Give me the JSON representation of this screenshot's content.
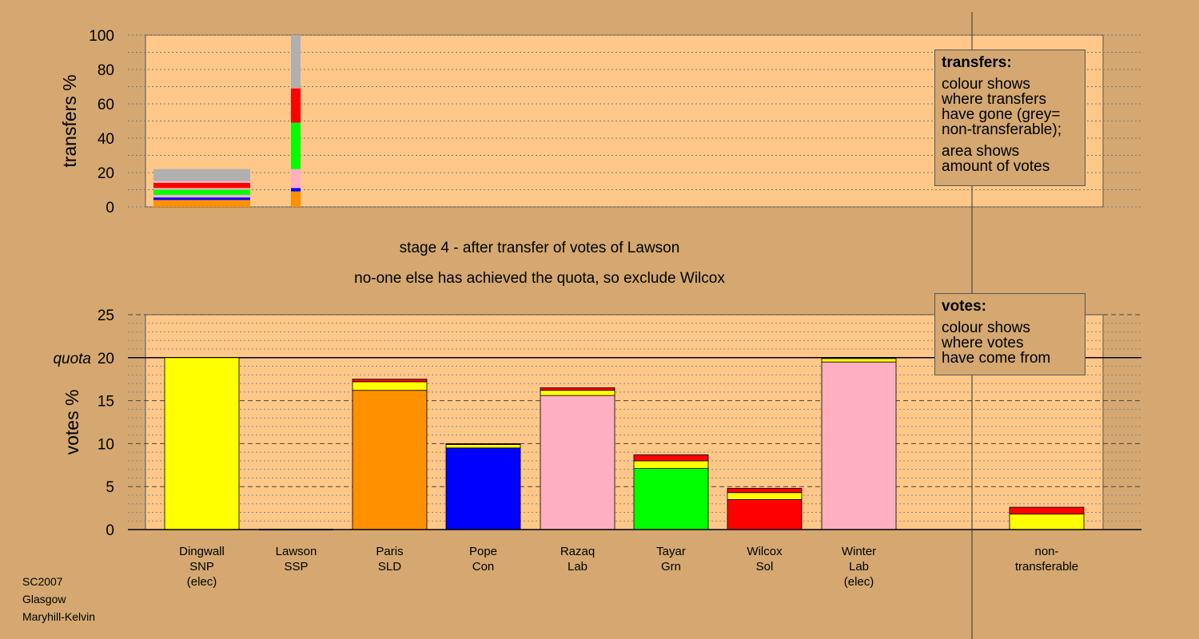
{
  "footer": [
    "SC2007",
    "Glasgow",
    "Maryhill-Kelvin"
  ],
  "stage": {
    "line1": "stage 4 - after transfer of votes of Lawson",
    "line2": "no-one else has achieved the quota, so exclude Wilcox"
  },
  "legend_transfers": {
    "title": "transfers:",
    "p1": "colour shows\nwhere transfers\nhave gone (grey=\nnon-transferable);",
    "p2": "area shows\namount of votes"
  },
  "legend_votes": {
    "title": "votes:",
    "p1": "colour shows\nwhere votes\nhave come from"
  },
  "colors": {
    "SNP": "#ffff00",
    "SSP": "#ff0000",
    "SLD": "#ff9000",
    "Con": "#0000ff",
    "Lab": "#ffb0c0",
    "Grn": "#00ff00",
    "Sol": "#ff0000",
    "nontransferable": "#b0b0b0",
    "plot_bg": "#ffc888"
  },
  "chart_data": [
    {
      "type": "bar",
      "stacked": true,
      "ylabel": "transfers %",
      "ylim": [
        0,
        100
      ],
      "yticks": [
        0,
        20,
        40,
        60,
        80,
        100
      ],
      "bars": [
        {
          "label": "Dingwall",
          "width_share": 0.05,
          "segments": [
            {
              "party": "SLD",
              "value": 4
            },
            {
              "party": "Con",
              "value": 1.5
            },
            {
              "party": "Lab",
              "value": 1.5
            },
            {
              "party": "Grn",
              "value": 3
            },
            {
              "party": "Lab",
              "value": 1
            },
            {
              "party": "SSP",
              "value": 3
            },
            {
              "party": "Lab",
              "value": 1
            },
            {
              "party": "nontransferable",
              "value": 7
            }
          ]
        },
        {
          "label": "Lawson",
          "width_share": 0.005,
          "segments": [
            {
              "party": "SLD",
              "value": 9
            },
            {
              "party": "Con",
              "value": 2
            },
            {
              "party": "Lab",
              "value": 11
            },
            {
              "party": "Grn",
              "value": 27
            },
            {
              "party": "SSP",
              "value": 20
            },
            {
              "party": "nontransferable",
              "value": 31
            }
          ]
        }
      ]
    },
    {
      "type": "bar",
      "stacked": true,
      "ylabel": "votes %",
      "ylim": [
        0,
        25
      ],
      "yticks": [
        0,
        5,
        10,
        15,
        20,
        25
      ],
      "quota": 20,
      "quota_label": "quota",
      "categories": [
        {
          "name": "Dingwall",
          "party": "SNP",
          "note": "(elec)"
        },
        {
          "name": "Lawson",
          "party": "SSP",
          "note": ""
        },
        {
          "name": "Paris",
          "party": "SLD",
          "note": ""
        },
        {
          "name": "Pope",
          "party": "Con",
          "note": ""
        },
        {
          "name": "Razaq",
          "party": "Lab",
          "note": ""
        },
        {
          "name": "Tayar",
          "party": "Grn",
          "note": ""
        },
        {
          "name": "Wilcox",
          "party": "Sol",
          "note": ""
        },
        {
          "name": "Winter",
          "party": "Lab",
          "note": "(elec)"
        },
        {
          "name": "",
          "party": "",
          "note": ""
        },
        {
          "name": "non-",
          "party": "transferable",
          "note": ""
        }
      ],
      "stacks": [
        [
          {
            "party": "SNP",
            "value": 20
          }
        ],
        [],
        [
          {
            "party": "SLD",
            "value": 16.2
          },
          {
            "party": "SNP",
            "value": 1
          },
          {
            "party": "SSP",
            "value": 0.3
          }
        ],
        [
          {
            "party": "Con",
            "value": 9.5
          },
          {
            "party": "SNP",
            "value": 0.4
          },
          {
            "party": "SSP",
            "value": 0.1
          }
        ],
        [
          {
            "party": "Lab",
            "value": 15.6
          },
          {
            "party": "SNP",
            "value": 0.6
          },
          {
            "party": "SSP",
            "value": 0.3
          }
        ],
        [
          {
            "party": "Grn",
            "value": 7.1
          },
          {
            "party": "SNP",
            "value": 0.9
          },
          {
            "party": "SSP",
            "value": 0.7
          }
        ],
        [
          {
            "party": "Sol",
            "value": 3.5
          },
          {
            "party": "SNP",
            "value": 0.8
          },
          {
            "party": "SSP",
            "value": 0.5
          }
        ],
        [
          {
            "party": "Lab",
            "value": 19.5
          },
          {
            "party": "SNP",
            "value": 0.4
          }
        ],
        [],
        [
          {
            "party": "SNP",
            "value": 1.8
          },
          {
            "party": "SSP",
            "value": 0.8
          }
        ]
      ]
    }
  ]
}
